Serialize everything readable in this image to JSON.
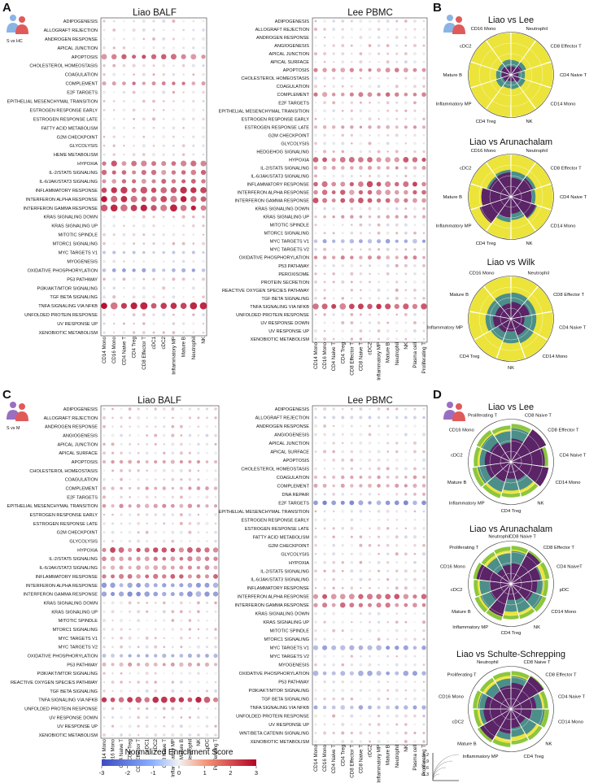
{
  "panels": [
    {
      "label": "A",
      "subtitle": "S vs HC"
    },
    {
      "label": "B"
    },
    {
      "label": "C",
      "subtitle": "S vs M"
    },
    {
      "label": "D"
    }
  ],
  "colorbar": {
    "title": "Normalized Enrichment Score",
    "ticks": [
      "-3",
      "-2",
      "-1",
      "0",
      "1",
      "2",
      "3"
    ],
    "colors": {
      "low": "#3b4cc0",
      "mid": "#f2f2f2",
      "high": "#b40426"
    }
  },
  "size_legend": {
    "ticks": [
      "1.2",
      "0.9",
      "0.6",
      "0.3"
    ]
  },
  "wheel_colors": {
    "outer": "#ece43a",
    "mid": "#4c8f8a",
    "inner": "#5b2467",
    "alt": "#8cc63f"
  },
  "chart_data": [
    {
      "type": "dotplot",
      "panel": "A",
      "title": "Liao BALF",
      "pathways": [
        "ADIPOGENESIS",
        "ALLOGRAFT REJECTION",
        "ANDROGEN RESPONSE",
        "APICAL JUNCTION",
        "APOPTOSIS",
        "CHOLESTEROL HOMEOSTASIS",
        "COAGULATION",
        "COMPLEMENT",
        "E2F TARGETS",
        "EPITHELIAL MESENCHYMAL TRANSITION",
        "ESTROGEN RESPONSE EARLY",
        "ESTROGEN RESPONSE LATE",
        "FATTY ACID METABOLISM",
        "G2M CHECKPOINT",
        "GLYCOLYSIS",
        "HEME METABOLISM",
        "HYPOXIA",
        "IL-2/STAT5 SIGNALING",
        "IL-6/JAK/STAT3 SIGNALING",
        "INFLAMMATORY RESPONSE",
        "INTERFERON ALPHA RESPONSE",
        "INTERFERON GAMMA RESPONSE",
        "KRAS SIGNALING DOWN",
        "KRAS SIGNALING UP",
        "MITOTIC SPINDLE",
        "MTORC1 SIGNALING",
        "MYC TARGETS V1",
        "MYOGENESIS",
        "OXIDATIVE PHOSPHORYLATION",
        "P53 PATHWAY",
        "PI3K/AKT/MTOR SIGNALING",
        "TGF BETA SIGNALING",
        "TNFA SIGNALING VIA NFKB",
        "UNFOLDED PROTEIN RESPONSE",
        "UV RESPONSE UP",
        "XENOBIOTIC METABOLISM"
      ],
      "cells": [
        "CD14 Mono",
        "CD16 Mono",
        "CD4 Naive T",
        "CD4 Treg",
        "CD8 Effector T",
        "cDC1",
        "cDC2",
        "Inflammatory MP",
        "Mature B",
        "Neutrophil",
        "NK"
      ],
      "strong": {
        "INTERFERON ALPHA RESPONSE": [
          2.6,
          0.9
        ],
        "INTERFERON GAMMA RESPONSE": [
          2.6,
          0.9
        ],
        "INFLAMMATORY RESPONSE": [
          2.3,
          0.8
        ],
        "TNFA SIGNALING VIA NFKB": [
          2.6,
          0.9
        ],
        "HYPOXIA": [
          1.9,
          0.6
        ],
        "APOPTOSIS": [
          1.9,
          0.55
        ],
        "IL-2/STAT5 SIGNALING": [
          1.7,
          0.5
        ],
        "IL-6/JAK/STAT3 SIGNALING": [
          1.7,
          0.45
        ],
        "COMPLEMENT": [
          1.5,
          0.35
        ],
        "OXIDATIVE PHOSPHORYLATION": [
          -1.4,
          0.3
        ],
        "MYC TARGETS V1": [
          -0.9,
          0.2
        ]
      }
    },
    {
      "type": "dotplot",
      "panel": "A",
      "title": "Lee PBMC",
      "pathways": [
        "ADIPOGENESIS",
        "ALLOGRAFT REJECTION",
        "ANDROGEN RESPONSE",
        "ANGIOGENESIS",
        "APICAL JUNCTION",
        "APICAL SURFACE",
        "APOPTOSIS",
        "CHOLESTEROL HOMEOSTASIS",
        "COAGULATION",
        "COMPLEMENT",
        "E2F TARGETS",
        "EPITHELIAL MESENCHYMAL TRANSITION",
        "ESTROGEN RESPONSE EARLY",
        "ESTROGEN RESPONSE LATE",
        "G2M CHECKPOINT",
        "GLYCOLYSIS",
        "HEDGEHOG SIGNALING",
        "HYPOXIA",
        "IL-2/STAT5 SIGNALING",
        "IL-6/JAK/STAT3 SIGNALING",
        "INFLAMMATORY RESPONSE",
        "INTERFERON ALPHA RESPONSE",
        "INTERFERON GAMMA RESPONSE",
        "KRAS SIGNALING DOWN",
        "KRAS SIGNALING UP",
        "MITOTIC SPINDLE",
        "MTORC1 SIGNALING",
        "MYC TARGETS V1",
        "MYC TARGETS V2",
        "OXIDATIVE PHOSPHORYLATION",
        "P53 PATHWAY",
        "PEROXISOME",
        "PROTEIN SECRETION",
        "REACTIVE OXYGEN SPECIES PATHWAY",
        "TGF BETA SIGNALING",
        "TNFA SIGNALING VIA NFKB",
        "UNFOLDED PROTEIN RESPONSE",
        "UV RESPONSE DOWN",
        "UV RESPONSE UP",
        "XENOBIOTIC METABOLISM"
      ],
      "cells": [
        "CD14 Mono",
        "CD16 Mono",
        "CD4 Naive T",
        "CD4 Treg",
        "CD8 Effector T",
        "CD8 Naive T",
        "cDC2",
        "Inflammatory MP",
        "Mature B",
        "Neutrophil",
        "NK",
        "Plasma cell",
        "Proliferating T"
      ],
      "strong": {
        "TNFA SIGNALING VIA NFKB": [
          2.4,
          0.7
        ],
        "INFLAMMATORY RESPONSE": [
          2.1,
          0.65
        ],
        "HYPOXIA": [
          1.9,
          0.55
        ],
        "INTERFERON GAMMA RESPONSE": [
          1.9,
          0.55
        ],
        "INTERFERON ALPHA RESPONSE": [
          1.7,
          0.5
        ],
        "COMPLEMENT": [
          1.6,
          0.45
        ],
        "APOPTOSIS": [
          1.4,
          0.4
        ],
        "MYC TARGETS V1": [
          -1.4,
          0.4
        ],
        "OXIDATIVE PHOSPHORYLATION": [
          1.3,
          0.3
        ],
        "IL-2/STAT5 SIGNALING": [
          1.2,
          0.3
        ],
        "ESTROGEN RESPONSE LATE": [
          1.1,
          0.25
        ],
        "KRAS SIGNALING UP": [
          1.1,
          0.25
        ]
      }
    },
    {
      "type": "dotplot",
      "panel": "C",
      "title": "Liao BALF",
      "pathways": [
        "ADIPOGENESIS",
        "ALLOGRAFT REJECTION",
        "ANDROGEN RESPONSE",
        "ANGIOGENESIS",
        "APICAL JUNCTION",
        "APICAL SURFACE",
        "APOPTOSIS",
        "CHOLESTEROL HOMEOSTASIS",
        "COAGULATION",
        "COMPLEMENT",
        "E2F TARGETS",
        "EPITHELIAL MESENCHYMAL TRANSITION",
        "ESTROGEN RESPONSE EARLY",
        "ESTROGEN RESPONSE LATE",
        "G2M CHECKPOINT",
        "GLYCOLYSIS",
        "HYPOXIA",
        "IL-2/STAT5 SIGNALING",
        "IL-6/JAK/STAT3 SIGNALING",
        "INFLAMMATORY RESPONSE",
        "INTERFERON ALPHA RESPONSE",
        "INTERFERON GAMMA RESPONSE",
        "KRAS SIGNALING DOWN",
        "KRAS SIGNALING UP",
        "MITOTIC SPINDLE",
        "MTORC1 SIGNALING",
        "MYC TARGETS V1",
        "MYC TARGETS V2",
        "OXIDATIVE PHOSPHORYLATION",
        "P53 PATHWAY",
        "PI3K/AKT/MTOR SIGNALING",
        "REACTIVE OXYGEN SPECIES PATHWAY",
        "TGF BETA SIGNALING",
        "TNFA SIGNALING VIA NFKB",
        "UNFOLDED PROTEIN RESPONSE",
        "UV RESPONSE DOWN",
        "UV RESPONSE UP",
        "XENOBIOTIC METABOLISM"
      ],
      "cells": [
        "CD14 Mono",
        "CD16 Mono",
        "CD4 Naive T",
        "CD4 Treg",
        "CD8 Effector T",
        "cDC1",
        "cDC2",
        "CD8 Naive T",
        "Inflammatory MP",
        "Mature B",
        "Neutrophil",
        "NK",
        "pDC",
        "Proliferating T"
      ],
      "strong": {
        "TNFA SIGNALING VIA NFKB": [
          2.4,
          0.7
        ],
        "HYPOXIA": [
          2.0,
          0.55
        ],
        "INTERFERON GAMMA RESPONSE": [
          -1.8,
          0.55
        ],
        "INTERFERON ALPHA RESPONSE": [
          -1.6,
          0.5
        ],
        "INFLAMMATORY RESPONSE": [
          1.7,
          0.5
        ],
        "IL-2/STAT5 SIGNALING": [
          1.5,
          0.45
        ],
        "IL-6/JAK/STAT3 SIGNALING": [
          1.3,
          0.4
        ],
        "EPITHELIAL MESENCHYMAL TRANSITION": [
          1.3,
          0.35
        ],
        "P53 PATHWAY": [
          1.1,
          0.35
        ],
        "OXIDATIVE PHOSPHORYLATION": [
          -1.2,
          0.35
        ],
        "APOPTOSIS": [
          1.1,
          0.3
        ],
        "COMPLEMENT": [
          1.1,
          0.25
        ]
      }
    },
    {
      "type": "dotplot",
      "panel": "C",
      "title": "Lee PBMC",
      "pathways": [
        "ADIPOGENESIS",
        "ALLOGRAFT REJECTION",
        "ANDROGEN RESPONSE",
        "ANGIOGENESIS",
        "APICAL JUNCTION",
        "APICAL SURFACE",
        "APOPTOSIS",
        "CHOLESTEROL HOMEOSTASIS",
        "COAGULATION",
        "COMPLEMENT",
        "DNA REPAIR",
        "E2F TARGETS",
        "EPITHELIAL MESENCHYMAL TRANSITION",
        "ESTROGEN RESPONSE EARLY",
        "ESTROGEN RESPONSE LATE",
        "FATTY ACID METABOLISM",
        "G2M CHECKPOINT",
        "GLYCOLYSIS",
        "HYPOXIA",
        "IL-2/STAT5 SIGNALING",
        "IL-6/JAK/STAT3 SIGNALING",
        "INFLAMMATORY RESPONSE",
        "INTERFERON ALPHA RESPONSE",
        "INTERFERON GAMMA RESPONSE",
        "KRAS SIGNALING DOWN",
        "KRAS SIGNALING UP",
        "MITOTIC SPINDLE",
        "MTORC1 SIGNALING",
        "MYC TARGETS V1",
        "MYC TARGETS V2",
        "MYOGENESIS",
        "OXIDATIVE PHOSPHORYLATION",
        "P53 PATHWAY",
        "PI3K/AKT/MTOR SIGNALING",
        "TGF BETA SIGNALING",
        "TNFA SIGNALING VIA NFKB",
        "UNFOLDED PROTEIN RESPONSE",
        "UV RESPONSE UP",
        "WNT/BETA CATENIN SIGNALING",
        "XENOBIOTIC METABOLISM"
      ],
      "cells": [
        "CD14 Mono",
        "CD16 Mono",
        "CD4 Naive T",
        "CD4 Treg",
        "CD8 Effector T",
        "CD8 Naive T",
        "cDC2",
        "Inflammatory MP",
        "Mature B",
        "Neutrophil",
        "NK",
        "Plasma cell",
        "Proliferating T"
      ],
      "strong": {
        "INTERFERON ALPHA RESPONSE": [
          1.9,
          0.6
        ],
        "INTERFERON GAMMA RESPONSE": [
          1.7,
          0.5
        ],
        "MYC TARGETS V1": [
          -1.6,
          0.5
        ],
        "OXIDATIVE PHOSPHORYLATION": [
          -1.5,
          0.5
        ],
        "E2F TARGETS": [
          -1.8,
          0.45
        ],
        "TNFA SIGNALING VIA NFKB": [
          -1.3,
          0.4
        ],
        "COMPLEMENT": [
          1.1,
          0.3
        ],
        "COAGULATION": [
          1.1,
          0.25
        ],
        "ALLOGRAFT REJECTION": [
          -0.8,
          0.2
        ]
      }
    },
    {
      "type": "radial",
      "panel": "B",
      "title": "Liao vs Lee",
      "labels": [
        "Neutrophil",
        "CD8 Effector T",
        "CD4 Naive T",
        "CD14 Mono",
        "NK",
        "CD4 Treg",
        "Inflammatory MP",
        "Mature B",
        "cDC2",
        "CD16 Mono"
      ],
      "outer": [
        1.0,
        1.0,
        1.0,
        1.0,
        1.0,
        1.0,
        1.0,
        1.0,
        1.0,
        1.0
      ],
      "mid": [
        0.35,
        0.38,
        0.33,
        0.36,
        0.34,
        0.32,
        0.37,
        0.35,
        0.33,
        0.36
      ],
      "inner": [
        0.2,
        0.28,
        0.18,
        0.22,
        0.16,
        0.15,
        0.2,
        0.22,
        0.24,
        0.2
      ]
    },
    {
      "type": "radial",
      "panel": "B",
      "title": "Liao vs Arunachalam",
      "labels": [
        "Neutrophil",
        "CD8 Effector T",
        "CD4 Naive T",
        "CD14 Mono",
        "NK",
        "CD4 Treg",
        "Inflammatory MP",
        "Mature B",
        "cDC2",
        "CD16 Mono"
      ],
      "outer": [
        1.0,
        1.0,
        1.0,
        1.0,
        1.0,
        1.0,
        1.0,
        1.0,
        1.0,
        1.0
      ],
      "mid": [
        0.6,
        0.62,
        0.58,
        0.65,
        0.55,
        0.6,
        0.62,
        0.58,
        0.6,
        0.64
      ],
      "inner": [
        0.45,
        0.55,
        0.5,
        0.62,
        0.4,
        0.5,
        0.78,
        0.7,
        0.55,
        0.58
      ]
    },
    {
      "type": "radial",
      "panel": "B",
      "title": "Liao vs Wilk",
      "labels": [
        "Neutrophil",
        "CD8 Effector T",
        "CD4 Naive T",
        "CD14 Mono",
        "NK",
        "CD4 Treg",
        "Inflammatory MP",
        "Mature B",
        "CD16 Mono"
      ],
      "outer": [
        1.0,
        1.0,
        1.0,
        1.0,
        1.0,
        1.0,
        1.0,
        1.0,
        1.0
      ],
      "mid": [
        0.62,
        0.6,
        0.6,
        0.62,
        0.58,
        0.55,
        0.6,
        0.58,
        0.6
      ],
      "inner": [
        0.4,
        0.45,
        0.32,
        0.42,
        0.3,
        0.35,
        0.42,
        0.38,
        0.36
      ]
    },
    {
      "type": "radial",
      "panel": "D",
      "title": "Liao vs Lee",
      "labels": [
        "CD8 Naive T",
        "CD8 Effector T",
        "CD4 Naive T",
        "CD14 Mono",
        "NK",
        "CD4 Treg",
        "Inflammatory MP",
        "Mature B",
        "cDC2",
        "CD16 Mono",
        "Proliferating T"
      ],
      "outer": [
        0.9,
        0.92,
        0.88,
        0.9,
        0.86,
        0.84,
        0.9,
        0.92,
        0.88,
        0.9,
        0.86
      ],
      "mid": [
        0.8,
        0.82,
        0.75,
        0.78,
        0.7,
        0.68,
        0.75,
        0.8,
        0.74,
        0.78,
        0.72
      ],
      "inner": [
        0.55,
        0.92,
        0.8,
        0.9,
        0.45,
        0.4,
        0.5,
        0.6,
        0.62,
        0.55,
        0.45
      ]
    },
    {
      "type": "radial",
      "panel": "D",
      "title": "Liao vs Arunachalam",
      "labels": [
        "CD8 Naive T",
        "CD8 Effector T",
        "CD4 NaiveT",
        "pDC",
        "CD14 Mono",
        "NK",
        "CD4 Treg",
        "Inflammatory MP",
        "Mature B",
        "cDC2",
        "CD16 Mono",
        "Proliferating T",
        "Neutrophil"
      ],
      "outer": [
        0.9,
        0.9,
        0.92,
        0.88,
        0.9,
        0.86,
        0.84,
        0.9,
        0.92,
        0.88,
        0.9,
        0.86,
        0.88
      ],
      "mid": [
        0.78,
        0.8,
        0.74,
        0.76,
        0.8,
        0.7,
        0.66,
        0.72,
        0.78,
        0.74,
        0.78,
        0.7,
        0.72
      ],
      "inner": [
        0.5,
        0.85,
        0.7,
        0.62,
        0.55,
        0.4,
        0.38,
        0.8,
        0.52,
        0.5,
        0.82,
        0.4,
        0.45
      ]
    },
    {
      "type": "radial",
      "panel": "D",
      "title": "Liao vs Schulte-Schrepping",
      "labels": [
        "CD8 Naive T",
        "CD8 Effector T",
        "CD4 Naive T",
        "CD14 Mono",
        "NK",
        "CD4 Treg",
        "Inflammatory MP",
        "Mature B",
        "cDC2",
        "CD16 Mono",
        "Proliferating T",
        "Neutrophil"
      ],
      "outer": [
        0.9,
        0.92,
        0.88,
        0.9,
        0.86,
        0.84,
        0.9,
        0.92,
        0.88,
        0.9,
        0.86,
        0.88
      ],
      "mid": [
        0.78,
        0.8,
        0.74,
        0.8,
        0.7,
        0.66,
        0.72,
        0.78,
        0.74,
        0.78,
        0.7,
        0.72
      ],
      "inner": [
        0.62,
        0.9,
        0.6,
        0.5,
        0.4,
        0.45,
        0.58,
        0.85,
        0.65,
        0.62,
        0.5,
        0.55
      ]
    }
  ]
}
